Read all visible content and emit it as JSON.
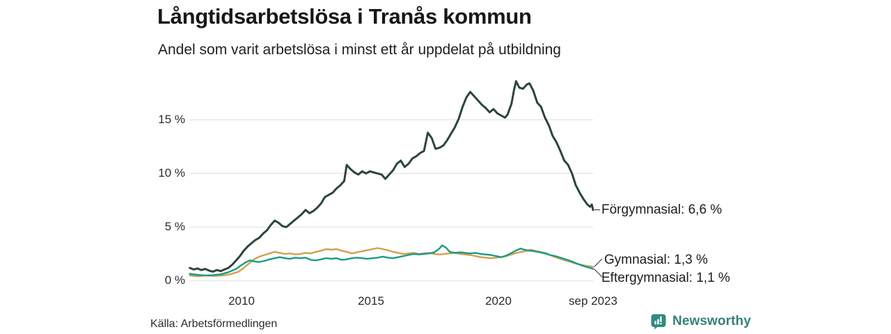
{
  "header": {
    "title": "Långtidsarbetslösa i Tranås kommun",
    "subtitle": "Andel som varit arbetslösa i minst ett år uppdelat på utbildning"
  },
  "source": {
    "label": "Källa: Arbetsförmedlingen"
  },
  "brand": {
    "name": "Newsworthy",
    "color": "#37807A",
    "icon": "bar-chart-speech-bubble-icon",
    "icon_color": "#2E8B7E"
  },
  "chart_data": {
    "type": "line",
    "title": "Långtidsarbetslösa i Tranås kommun",
    "subtitle": "Andel som varit arbetslösa i minst ett år uppdelat på utbildning",
    "xlabel": "",
    "ylabel": "",
    "grid": true,
    "legend_position": "right-end-labels",
    "x_axis": {
      "range": [
        2008.0,
        2023.67
      ],
      "ticks": [
        {
          "label": "2010",
          "year": 2010
        },
        {
          "label": "2015",
          "year": 2015
        },
        {
          "label": "2020",
          "year": 2020
        },
        {
          "label": "sep 2023",
          "year": 2023.67
        }
      ]
    },
    "y_axis": {
      "unit": "%",
      "range": [
        0,
        19.5
      ],
      "ticks": [
        {
          "label": "15 %",
          "value": 15
        },
        {
          "label": "10 %",
          "value": 10
        },
        {
          "label": "5 %",
          "value": 5
        },
        {
          "label": "0 %",
          "value": 0
        }
      ]
    },
    "series": [
      {
        "name": "Förgymnasial",
        "end_label": "Förgymnasial: 6,6 %",
        "last_value": 6.6,
        "color": "#2B453E",
        "points": [
          [
            2008.0,
            1.2
          ],
          [
            2008.15,
            1.05
          ],
          [
            2008.3,
            1.15
          ],
          [
            2008.45,
            1.0
          ],
          [
            2008.6,
            1.1
          ],
          [
            2008.75,
            0.95
          ],
          [
            2008.9,
            0.85
          ],
          [
            2009.05,
            1.0
          ],
          [
            2009.2,
            0.9
          ],
          [
            2009.35,
            1.05
          ],
          [
            2009.5,
            1.2
          ],
          [
            2009.65,
            1.5
          ],
          [
            2009.8,
            1.9
          ],
          [
            2009.95,
            2.3
          ],
          [
            2010.1,
            2.8
          ],
          [
            2010.25,
            3.2
          ],
          [
            2010.4,
            3.5
          ],
          [
            2010.55,
            3.8
          ],
          [
            2010.7,
            4.0
          ],
          [
            2010.85,
            4.4
          ],
          [
            2011.0,
            4.7
          ],
          [
            2011.15,
            5.2
          ],
          [
            2011.3,
            5.6
          ],
          [
            2011.45,
            5.4
          ],
          [
            2011.6,
            5.1
          ],
          [
            2011.75,
            5.0
          ],
          [
            2011.9,
            5.3
          ],
          [
            2012.05,
            5.6
          ],
          [
            2012.2,
            5.9
          ],
          [
            2012.35,
            6.2
          ],
          [
            2012.5,
            6.6
          ],
          [
            2012.65,
            6.3
          ],
          [
            2012.8,
            6.5
          ],
          [
            2012.95,
            6.8
          ],
          [
            2013.1,
            7.2
          ],
          [
            2013.25,
            7.8
          ],
          [
            2013.4,
            8.0
          ],
          [
            2013.55,
            8.2
          ],
          [
            2013.7,
            8.6
          ],
          [
            2013.85,
            8.9
          ],
          [
            2014.0,
            9.3
          ],
          [
            2014.1,
            10.8
          ],
          [
            2014.25,
            10.4
          ],
          [
            2014.4,
            10.1
          ],
          [
            2014.55,
            9.9
          ],
          [
            2014.7,
            10.2
          ],
          [
            2014.85,
            10.0
          ],
          [
            2015.0,
            10.2
          ],
          [
            2015.15,
            10.1
          ],
          [
            2015.3,
            10.0
          ],
          [
            2015.45,
            9.9
          ],
          [
            2015.6,
            9.5
          ],
          [
            2015.75,
            9.9
          ],
          [
            2015.9,
            10.3
          ],
          [
            2016.05,
            10.9
          ],
          [
            2016.2,
            11.2
          ],
          [
            2016.35,
            10.6
          ],
          [
            2016.5,
            10.9
          ],
          [
            2016.65,
            11.4
          ],
          [
            2016.8,
            11.6
          ],
          [
            2016.95,
            11.9
          ],
          [
            2017.1,
            12.1
          ],
          [
            2017.25,
            13.8
          ],
          [
            2017.4,
            13.3
          ],
          [
            2017.55,
            12.3
          ],
          [
            2017.7,
            12.4
          ],
          [
            2017.85,
            12.6
          ],
          [
            2018.0,
            13.1
          ],
          [
            2018.15,
            13.7
          ],
          [
            2018.3,
            14.3
          ],
          [
            2018.45,
            15.1
          ],
          [
            2018.6,
            16.2
          ],
          [
            2018.75,
            17.1
          ],
          [
            2018.9,
            17.6
          ],
          [
            2019.05,
            17.2
          ],
          [
            2019.2,
            16.8
          ],
          [
            2019.35,
            16.4
          ],
          [
            2019.5,
            16.1
          ],
          [
            2019.65,
            15.7
          ],
          [
            2019.8,
            16.0
          ],
          [
            2019.95,
            15.6
          ],
          [
            2020.1,
            15.4
          ],
          [
            2020.25,
            15.2
          ],
          [
            2020.35,
            15.5
          ],
          [
            2020.5,
            16.5
          ],
          [
            2020.6,
            17.8
          ],
          [
            2020.68,
            18.6
          ],
          [
            2020.8,
            18.0
          ],
          [
            2020.95,
            17.9
          ],
          [
            2021.1,
            18.3
          ],
          [
            2021.2,
            18.4
          ],
          [
            2021.35,
            17.7
          ],
          [
            2021.5,
            16.6
          ],
          [
            2021.65,
            16.2
          ],
          [
            2021.8,
            15.2
          ],
          [
            2021.95,
            14.5
          ],
          [
            2022.1,
            13.5
          ],
          [
            2022.25,
            12.9
          ],
          [
            2022.4,
            12.1
          ],
          [
            2022.55,
            11.2
          ],
          [
            2022.7,
            10.8
          ],
          [
            2022.85,
            10.0
          ],
          [
            2023.0,
            8.9
          ],
          [
            2023.15,
            8.2
          ],
          [
            2023.3,
            7.6
          ],
          [
            2023.45,
            7.1
          ],
          [
            2023.55,
            6.9
          ],
          [
            2023.62,
            7.1
          ],
          [
            2023.67,
            6.6
          ]
        ]
      },
      {
        "name": "Gymnasial",
        "end_label": "Gymnasial: 1,3 %",
        "last_value": 1.3,
        "color": "#D0A04A",
        "points": [
          [
            2008.0,
            0.5
          ],
          [
            2008.3,
            0.42
          ],
          [
            2008.6,
            0.48
          ],
          [
            2009.0,
            0.45
          ],
          [
            2009.3,
            0.5
          ],
          [
            2009.6,
            0.62
          ],
          [
            2009.9,
            0.85
          ],
          [
            2010.1,
            1.2
          ],
          [
            2010.3,
            1.6
          ],
          [
            2010.5,
            2.0
          ],
          [
            2010.7,
            2.25
          ],
          [
            2010.9,
            2.4
          ],
          [
            2011.1,
            2.55
          ],
          [
            2011.3,
            2.7
          ],
          [
            2011.5,
            2.6
          ],
          [
            2011.7,
            2.5
          ],
          [
            2011.9,
            2.55
          ],
          [
            2012.1,
            2.45
          ],
          [
            2012.3,
            2.5
          ],
          [
            2012.5,
            2.6
          ],
          [
            2012.7,
            2.55
          ],
          [
            2012.9,
            2.7
          ],
          [
            2013.1,
            2.8
          ],
          [
            2013.3,
            2.95
          ],
          [
            2013.5,
            2.9
          ],
          [
            2013.7,
            2.95
          ],
          [
            2013.9,
            2.8
          ],
          [
            2014.1,
            2.7
          ],
          [
            2014.3,
            2.55
          ],
          [
            2014.5,
            2.65
          ],
          [
            2014.7,
            2.75
          ],
          [
            2014.9,
            2.85
          ],
          [
            2015.1,
            2.95
          ],
          [
            2015.3,
            3.05
          ],
          [
            2015.5,
            2.95
          ],
          [
            2015.7,
            2.85
          ],
          [
            2015.9,
            2.7
          ],
          [
            2016.1,
            2.6
          ],
          [
            2016.3,
            2.5
          ],
          [
            2016.5,
            2.55
          ],
          [
            2016.7,
            2.6
          ],
          [
            2016.9,
            2.5
          ],
          [
            2017.1,
            2.55
          ],
          [
            2017.3,
            2.6
          ],
          [
            2017.5,
            2.5
          ],
          [
            2017.7,
            2.45
          ],
          [
            2017.9,
            2.5
          ],
          [
            2018.1,
            2.55
          ],
          [
            2018.3,
            2.6
          ],
          [
            2018.5,
            2.5
          ],
          [
            2018.7,
            2.45
          ],
          [
            2018.9,
            2.4
          ],
          [
            2019.1,
            2.3
          ],
          [
            2019.3,
            2.2
          ],
          [
            2019.5,
            2.15
          ],
          [
            2019.7,
            2.1
          ],
          [
            2019.9,
            2.15
          ],
          [
            2020.1,
            2.2
          ],
          [
            2020.3,
            2.3
          ],
          [
            2020.5,
            2.45
          ],
          [
            2020.7,
            2.6
          ],
          [
            2020.9,
            2.7
          ],
          [
            2021.1,
            2.8
          ],
          [
            2021.25,
            2.9
          ],
          [
            2021.4,
            2.8
          ],
          [
            2021.6,
            2.7
          ],
          [
            2021.8,
            2.6
          ],
          [
            2022.0,
            2.4
          ],
          [
            2022.2,
            2.2
          ],
          [
            2022.4,
            2.05
          ],
          [
            2022.6,
            1.9
          ],
          [
            2022.8,
            1.75
          ],
          [
            2023.0,
            1.6
          ],
          [
            2023.2,
            1.5
          ],
          [
            2023.4,
            1.4
          ],
          [
            2023.55,
            1.35
          ],
          [
            2023.67,
            1.3
          ]
        ]
      },
      {
        "name": "Eftergymnasial",
        "end_label": "Eftergymnasial: 1,1 %",
        "last_value": 1.1,
        "color": "#199B87",
        "points": [
          [
            2008.0,
            0.65
          ],
          [
            2008.3,
            0.55
          ],
          [
            2008.6,
            0.5
          ],
          [
            2008.9,
            0.52
          ],
          [
            2009.2,
            0.6
          ],
          [
            2009.5,
            0.8
          ],
          [
            2009.8,
            1.1
          ],
          [
            2010.0,
            1.45
          ],
          [
            2010.2,
            1.75
          ],
          [
            2010.35,
            1.9
          ],
          [
            2010.5,
            1.8
          ],
          [
            2010.7,
            1.75
          ],
          [
            2010.9,
            1.85
          ],
          [
            2011.1,
            2.0
          ],
          [
            2011.3,
            2.1
          ],
          [
            2011.5,
            2.2
          ],
          [
            2011.7,
            2.1
          ],
          [
            2011.9,
            2.05
          ],
          [
            2012.1,
            2.15
          ],
          [
            2012.3,
            2.1
          ],
          [
            2012.5,
            2.15
          ],
          [
            2012.7,
            1.95
          ],
          [
            2012.9,
            1.9
          ],
          [
            2013.1,
            2.0
          ],
          [
            2013.3,
            2.1
          ],
          [
            2013.5,
            2.05
          ],
          [
            2013.7,
            2.1
          ],
          [
            2013.9,
            1.95
          ],
          [
            2014.1,
            2.0
          ],
          [
            2014.3,
            2.1
          ],
          [
            2014.5,
            2.15
          ],
          [
            2014.7,
            2.1
          ],
          [
            2014.9,
            2.05
          ],
          [
            2015.1,
            2.1
          ],
          [
            2015.3,
            2.15
          ],
          [
            2015.5,
            2.25
          ],
          [
            2015.7,
            2.15
          ],
          [
            2015.9,
            2.1
          ],
          [
            2016.1,
            2.2
          ],
          [
            2016.3,
            2.3
          ],
          [
            2016.5,
            2.4
          ],
          [
            2016.7,
            2.5
          ],
          [
            2016.9,
            2.45
          ],
          [
            2017.1,
            2.5
          ],
          [
            2017.3,
            2.55
          ],
          [
            2017.5,
            2.65
          ],
          [
            2017.7,
            3.0
          ],
          [
            2017.8,
            3.3
          ],
          [
            2017.95,
            3.1
          ],
          [
            2018.1,
            2.7
          ],
          [
            2018.3,
            2.6
          ],
          [
            2018.5,
            2.65
          ],
          [
            2018.7,
            2.6
          ],
          [
            2018.9,
            2.55
          ],
          [
            2019.1,
            2.6
          ],
          [
            2019.3,
            2.5
          ],
          [
            2019.5,
            2.45
          ],
          [
            2019.7,
            2.4
          ],
          [
            2019.9,
            2.3
          ],
          [
            2020.1,
            2.2
          ],
          [
            2020.3,
            2.35
          ],
          [
            2020.5,
            2.6
          ],
          [
            2020.7,
            2.85
          ],
          [
            2020.85,
            3.0
          ],
          [
            2021.0,
            2.9
          ],
          [
            2021.2,
            2.8
          ],
          [
            2021.4,
            2.75
          ],
          [
            2021.6,
            2.65
          ],
          [
            2021.8,
            2.55
          ],
          [
            2022.0,
            2.4
          ],
          [
            2022.2,
            2.3
          ],
          [
            2022.4,
            2.15
          ],
          [
            2022.6,
            2.0
          ],
          [
            2022.8,
            1.85
          ],
          [
            2023.0,
            1.65
          ],
          [
            2023.2,
            1.45
          ],
          [
            2023.4,
            1.3
          ],
          [
            2023.55,
            1.2
          ],
          [
            2023.67,
            1.1
          ]
        ]
      }
    ]
  }
}
